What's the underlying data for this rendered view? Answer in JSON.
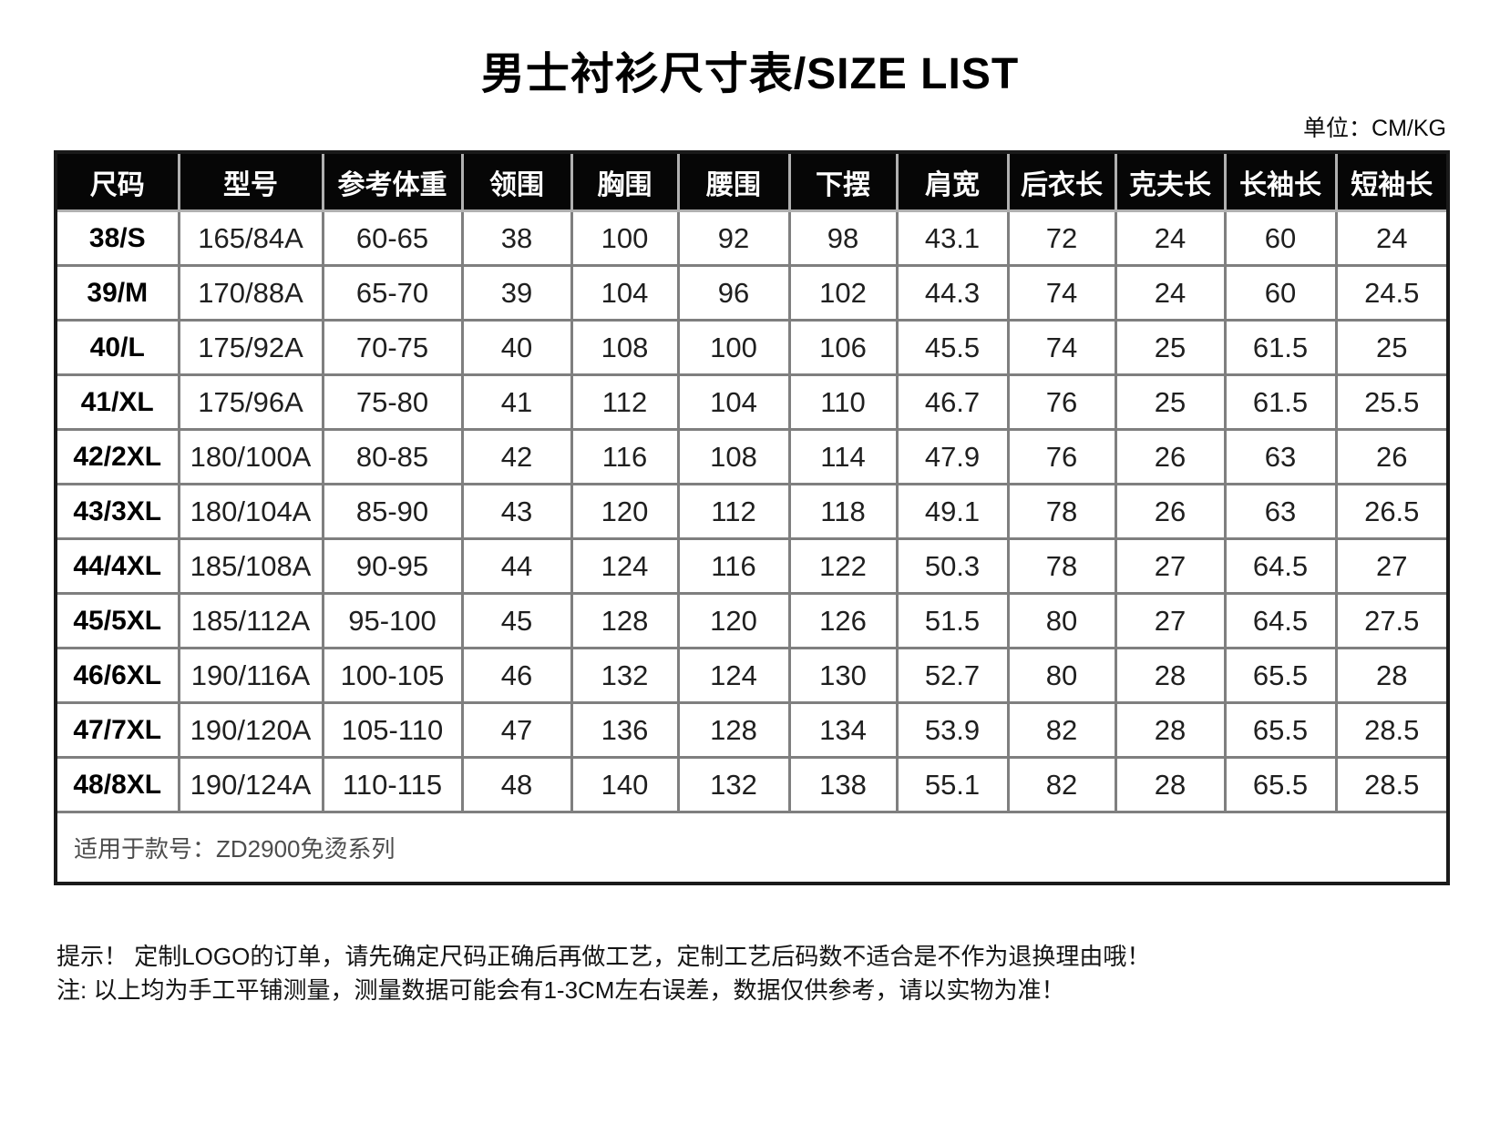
{
  "page": {
    "title": "男士衬衫尺寸表/SIZE LIST",
    "unit_label": "单位：CM/KG"
  },
  "table": {
    "headers": [
      "尺码",
      "型号",
      "参考体重",
      "领围",
      "胸围",
      "腰围",
      "下摆",
      "肩宽",
      "后衣长",
      "克夫长",
      "长袖长",
      "短袖长"
    ],
    "rows": [
      [
        "38/S",
        "165/84A",
        "60-65",
        "38",
        "100",
        "92",
        "98",
        "43.1",
        "72",
        "24",
        "60",
        "24"
      ],
      [
        "39/M",
        "170/88A",
        "65-70",
        "39",
        "104",
        "96",
        "102",
        "44.3",
        "74",
        "24",
        "60",
        "24.5"
      ],
      [
        "40/L",
        "175/92A",
        "70-75",
        "40",
        "108",
        "100",
        "106",
        "45.5",
        "74",
        "25",
        "61.5",
        "25"
      ],
      [
        "41/XL",
        "175/96A",
        "75-80",
        "41",
        "112",
        "104",
        "110",
        "46.7",
        "76",
        "25",
        "61.5",
        "25.5"
      ],
      [
        "42/2XL",
        "180/100A",
        "80-85",
        "42",
        "116",
        "108",
        "114",
        "47.9",
        "76",
        "26",
        "63",
        "26"
      ],
      [
        "43/3XL",
        "180/104A",
        "85-90",
        "43",
        "120",
        "112",
        "118",
        "49.1",
        "78",
        "26",
        "63",
        "26.5"
      ],
      [
        "44/4XL",
        "185/108A",
        "90-95",
        "44",
        "124",
        "116",
        "122",
        "50.3",
        "78",
        "27",
        "64.5",
        "27"
      ],
      [
        "45/5XL",
        "185/112A",
        "95-100",
        "45",
        "128",
        "120",
        "126",
        "51.5",
        "80",
        "27",
        "64.5",
        "27.5"
      ],
      [
        "46/6XL",
        "190/116A",
        "100-105",
        "46",
        "132",
        "124",
        "130",
        "52.7",
        "80",
        "28",
        "65.5",
        "28"
      ],
      [
        "47/7XL",
        "190/120A",
        "105-110",
        "47",
        "136",
        "128",
        "134",
        "53.9",
        "82",
        "28",
        "65.5",
        "28.5"
      ],
      [
        "48/8XL",
        "190/124A",
        "110-115",
        "48",
        "140",
        "132",
        "138",
        "55.1",
        "82",
        "28",
        "65.5",
        "28.5"
      ]
    ],
    "footer": "适用于款号：ZD2900免烫系列"
  },
  "notes": {
    "line1": "提示！ 定制LOGO的订单，请先确定尺码正确后再做工艺，定制工艺后码数不适合是不作为退换理由哦！",
    "line2": "注: 以上均为手工平铺测量，测量数据可能会有1-3CM左右误差，数据仅供参考，请以实物为准！"
  }
}
